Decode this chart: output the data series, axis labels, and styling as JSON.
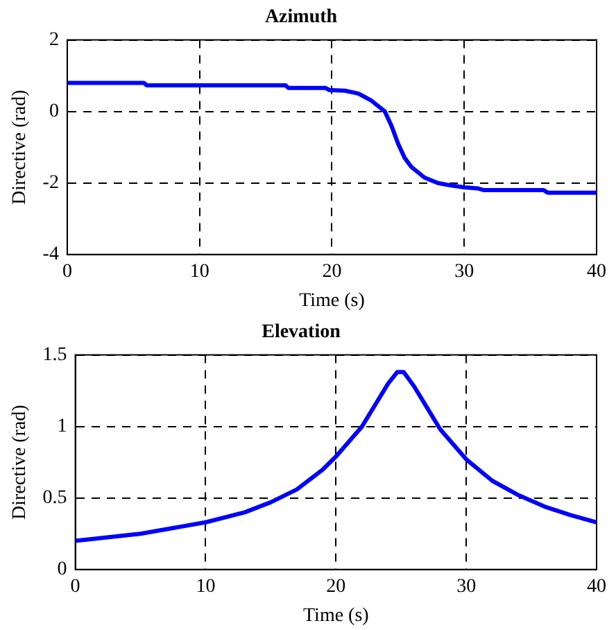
{
  "chart_data": [
    {
      "type": "line",
      "title": "Azimuth",
      "xlabel": "Time (s)",
      "ylabel": "Directive (rad)",
      "xlim": [
        0,
        40
      ],
      "xticks": [
        0,
        10,
        20,
        30,
        40
      ],
      "ylim": [
        -4,
        2
      ],
      "yticks": [
        -4,
        -2,
        0,
        2
      ],
      "grid": true,
      "legend": false,
      "marker": "none",
      "line_style": "solid",
      "series": [
        {
          "color": "#0000ff",
          "x": [
            0,
            5.8,
            6,
            16.5,
            16.7,
            19.5,
            19.8,
            21,
            22,
            23,
            24,
            24.5,
            25,
            25.5,
            26,
            27,
            28,
            29,
            30,
            31,
            31.5,
            36,
            36.3,
            40
          ],
          "values": [
            0.8,
            0.8,
            0.73,
            0.73,
            0.66,
            0.66,
            0.6,
            0.58,
            0.5,
            0.3,
            0,
            -0.4,
            -0.9,
            -1.3,
            -1.55,
            -1.85,
            -2.0,
            -2.07,
            -2.12,
            -2.15,
            -2.2,
            -2.2,
            -2.27,
            -2.27
          ]
        }
      ]
    },
    {
      "type": "line",
      "title": "Elevation",
      "xlabel": "Time (s)",
      "ylabel": "Directive (rad)",
      "xlim": [
        0,
        40
      ],
      "xticks": [
        0,
        10,
        20,
        30,
        40
      ],
      "ylim": [
        0,
        1.5
      ],
      "yticks": [
        0,
        0.5,
        1,
        1.5
      ],
      "grid": true,
      "legend": false,
      "marker": "none",
      "line_style": "solid",
      "series": [
        {
          "color": "#0000ff",
          "x": [
            0,
            5,
            10,
            13,
            15,
            17,
            19,
            20,
            22,
            23,
            24,
            24.7,
            25.2,
            26,
            27,
            28,
            30,
            32,
            34,
            36,
            38,
            40
          ],
          "values": [
            0.2,
            0.25,
            0.33,
            0.4,
            0.47,
            0.56,
            0.7,
            0.79,
            1.0,
            1.15,
            1.3,
            1.38,
            1.38,
            1.28,
            1.13,
            0.98,
            0.77,
            0.62,
            0.52,
            0.44,
            0.38,
            0.33
          ]
        }
      ]
    }
  ]
}
